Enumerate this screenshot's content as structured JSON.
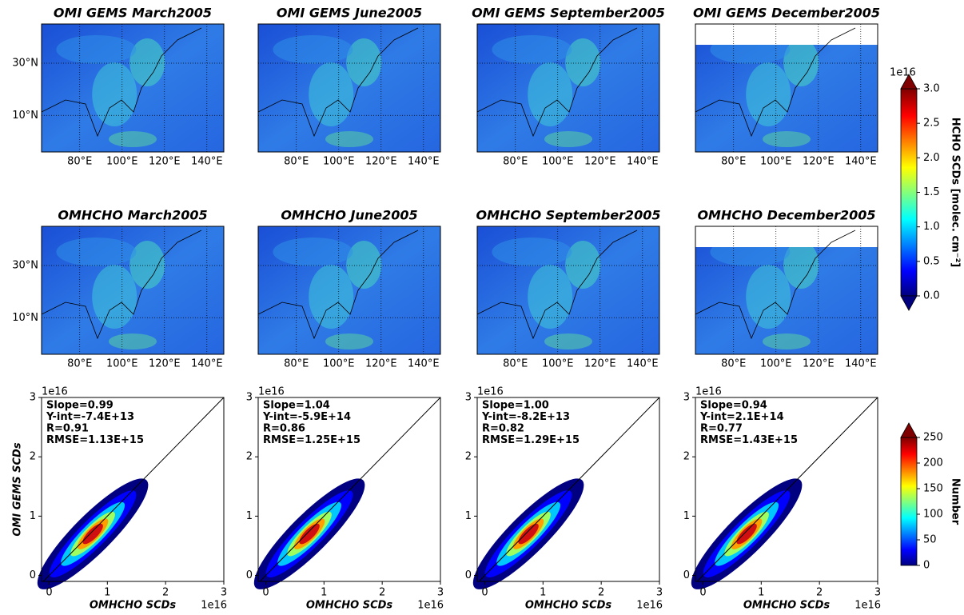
{
  "maps": {
    "rows": [
      {
        "titles": [
          "OMI GEMS March2005",
          "OMI GEMS June2005",
          "OMI GEMS September2005",
          "OMI GEMS December2005"
        ]
      },
      {
        "titles": [
          "OMHCHO March2005",
          "OMHCHO June2005",
          "OMHCHO September2005",
          "OMHCHO December2005"
        ]
      }
    ],
    "xlim": [
      62,
      148
    ],
    "ylim": [
      -4,
      45
    ],
    "xticks": [
      {
        "value": 80,
        "label": "80°E"
      },
      {
        "value": 100,
        "label": "100°E"
      },
      {
        "value": 120,
        "label": "120°E"
      },
      {
        "value": 140,
        "label": "140°E"
      }
    ],
    "yticks": [
      {
        "value": 10,
        "label": "10°N"
      },
      {
        "value": 30,
        "label": "30°N"
      }
    ]
  },
  "colorbar_hcho": {
    "label": "HCHO SCDs [molec. cm⁻²]",
    "offset": "1e16",
    "lim": [
      0,
      3
    ],
    "ticks": [
      {
        "value": 0,
        "label": "0.0"
      },
      {
        "value": 0.5,
        "label": "0.5"
      },
      {
        "value": 1,
        "label": "1.0"
      },
      {
        "value": 1.5,
        "label": "1.5"
      },
      {
        "value": 2,
        "label": "2.0"
      },
      {
        "value": 2.5,
        "label": "2.5"
      },
      {
        "value": 3,
        "label": "3.0"
      }
    ]
  },
  "scatter": {
    "xlabel": "OMHCHO SCDs",
    "ylabel": "OMI GEMS SCDs",
    "offset": "1e16",
    "xlim": [
      -0.13,
      3
    ],
    "ylim": [
      -0.1,
      3
    ],
    "xticks": [
      0,
      1,
      2,
      3
    ],
    "yticks": [
      0,
      1,
      2,
      3
    ],
    "panels": [
      {
        "stats": [
          "Slope=0.99",
          "Y-int=-7.4E+13",
          "R=0.91",
          "RMSE=1.13E+15"
        ]
      },
      {
        "stats": [
          "Slope=1.04",
          "Y-int=-5.9E+14",
          "R=0.86",
          "RMSE=1.25E+15"
        ]
      },
      {
        "stats": [
          "Slope=1.00",
          "Y-int=-8.2E+13",
          "R=0.82",
          "RMSE=1.29E+15"
        ]
      },
      {
        "stats": [
          "Slope=0.94",
          "Y-int=2.1E+14",
          "R=0.77",
          "RMSE=1.43E+15"
        ]
      }
    ]
  },
  "colorbar_number": {
    "label": "Number",
    "lim": [
      0,
      250
    ],
    "ticks": [
      0,
      50,
      100,
      150,
      200,
      250
    ]
  }
}
